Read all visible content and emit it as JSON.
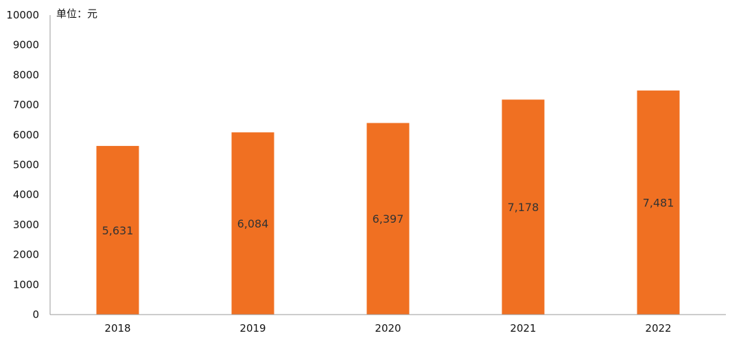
{
  "chart_data": {
    "type": "bar",
    "unit_label": "单位：元",
    "categories": [
      "2018",
      "2019",
      "2020",
      "2021",
      "2022"
    ],
    "values": [
      5631,
      6084,
      6397,
      7178,
      7481
    ],
    "value_labels": [
      "5,631",
      "6,084",
      "6,397",
      "7,178",
      "7,481"
    ],
    "ylim": [
      0,
      10000
    ],
    "yticks": [
      0,
      1000,
      2000,
      3000,
      4000,
      5000,
      6000,
      7000,
      8000,
      9000,
      10000
    ],
    "grid": false,
    "legend": "none",
    "bar_color": "#F07022",
    "axis_color": "#999999"
  }
}
